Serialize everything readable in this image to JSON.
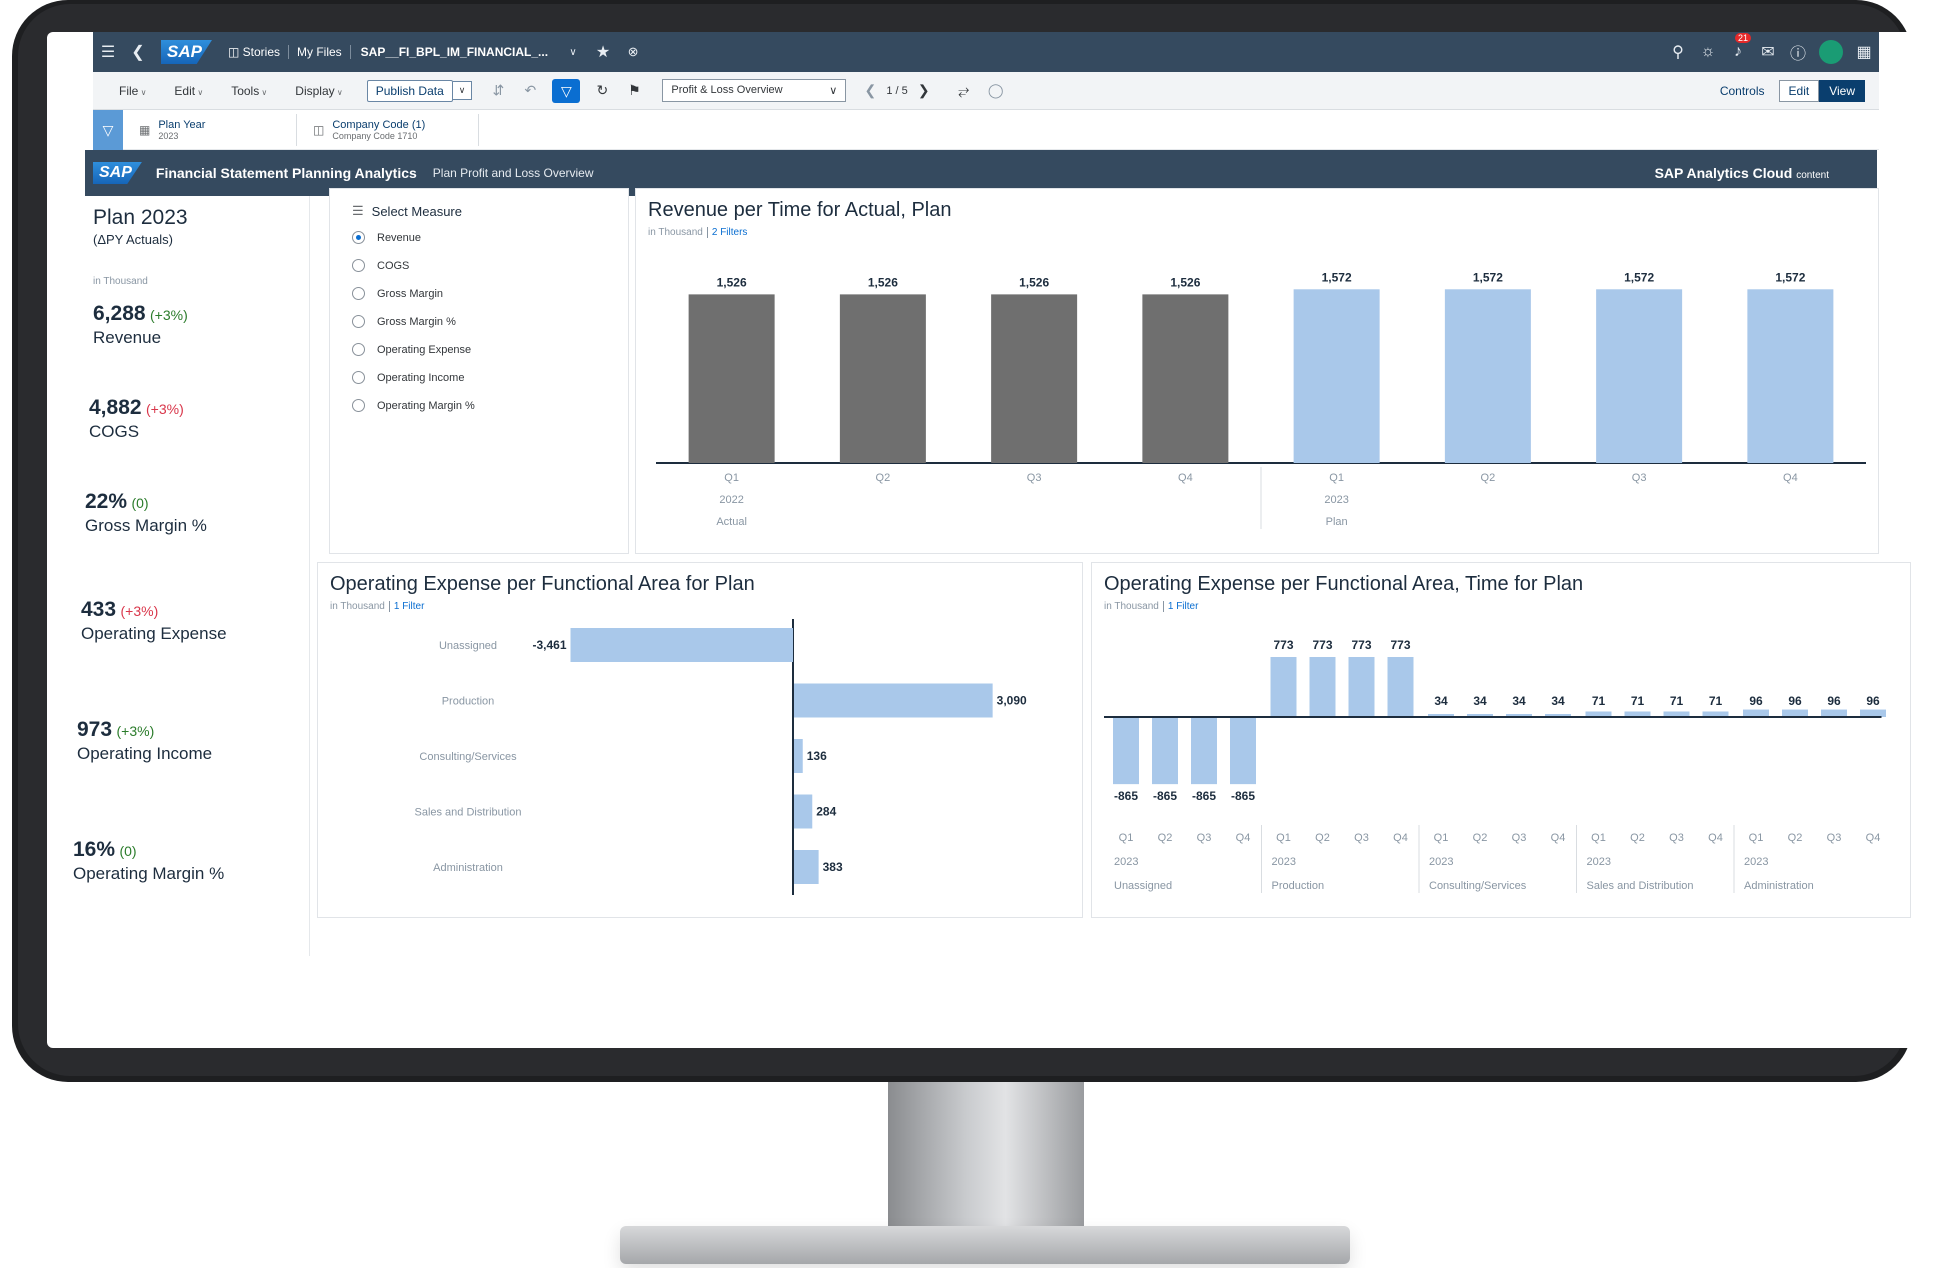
{
  "shell": {
    "stories": "Stories",
    "my_files": "My Files",
    "filename": "SAP__FI_BPL_IM_FINANCIAL_...",
    "notifications": "21"
  },
  "toolbar": {
    "menus": [
      "File",
      "Edit",
      "Tools",
      "Display"
    ],
    "publish": "Publish Data",
    "page_select": "Profit & Loss Overview",
    "pager": "1 / 5",
    "controls": "Controls",
    "edit": "Edit",
    "view": "View"
  },
  "filters": [
    {
      "label": "Plan Year",
      "value": "2023"
    },
    {
      "label": "Company Code (1)",
      "value": "Company Code 1710"
    }
  ],
  "header": {
    "app_title": "Financial Statement Planning Analytics",
    "subtitle": "Plan Profit and Loss Overview",
    "brand": "SAP Analytics Cloud",
    "brand_suffix": "content"
  },
  "kpis": {
    "title": "Plan 2023",
    "subtitle": "(ΔPY Actuals)",
    "unit": "in Thousand",
    "items": [
      {
        "value": "6,288",
        "delta": "(+3%)",
        "label": "Revenue",
        "tone": "pos"
      },
      {
        "value": "4,882",
        "delta": "(+3%)",
        "label": "COGS",
        "tone": "neg"
      },
      {
        "value": "22%",
        "delta": "(0)",
        "label": "Gross Margin %",
        "tone": "pos"
      },
      {
        "value": "433",
        "delta": "(+3%)",
        "label": "Operating Expense",
        "tone": "neg"
      },
      {
        "value": "973",
        "delta": "(+3%)",
        "label": "Operating Income",
        "tone": "pos"
      },
      {
        "value": "16%",
        "delta": "(0)",
        "label": "Operating Margin %",
        "tone": "pos"
      }
    ]
  },
  "measure_panel": {
    "title": "Select Measure",
    "options": [
      "Revenue",
      "COGS",
      "Gross Margin",
      "Gross Margin %",
      "Operating Expense",
      "Operating Income",
      "Operating Margin %"
    ],
    "selected": "Revenue"
  },
  "colors": {
    "actual": "#6f6f6f",
    "plan": "#a9c8ea",
    "shell": "#354a5f",
    "accent": "#0a6ed1"
  },
  "chart_data": [
    {
      "type": "bar",
      "title": "Revenue per Time for Actual, Plan",
      "unit": "in Thousand",
      "filter": "2 Filters",
      "categories": [
        "Q1",
        "Q2",
        "Q3",
        "Q4",
        "Q1",
        "Q2",
        "Q3",
        "Q4"
      ],
      "groups": [
        {
          "year": "2022",
          "version": "Actual",
          "count": 4
        },
        {
          "year": "2023",
          "version": "Plan",
          "count": 4
        }
      ],
      "values": [
        1526,
        1526,
        1526,
        1526,
        1572,
        1572,
        1572,
        1572
      ],
      "labels": [
        "1,526",
        "1,526",
        "1,526",
        "1,526",
        "1,572",
        "1,572",
        "1,572",
        "1,572"
      ]
    },
    {
      "type": "bar",
      "orientation": "horizontal",
      "title": "Operating Expense per Functional Area for Plan",
      "unit": "in Thousand",
      "filter": "1 Filter",
      "categories": [
        "Unassigned",
        "Production",
        "Consulting/Services",
        "Sales and Distribution",
        "Administration"
      ],
      "values": [
        -3461,
        3090,
        136,
        284,
        383
      ],
      "labels": [
        "-3,461",
        "3,090",
        "136",
        "284",
        "383"
      ]
    },
    {
      "type": "bar",
      "title": "Operating Expense per Functional Area, Time for Plan",
      "unit": "in Thousand",
      "filter": "1 Filter",
      "quarters": [
        "Q1",
        "Q2",
        "Q3",
        "Q4"
      ],
      "year": "2023",
      "groups": [
        {
          "name": "Unassigned",
          "values": [
            -865,
            -865,
            -865,
            -865
          ],
          "labels": [
            "-865",
            "-865",
            "-865",
            "-865"
          ]
        },
        {
          "name": "Production",
          "values": [
            773,
            773,
            773,
            773
          ],
          "labels": [
            "773",
            "773",
            "773",
            "773"
          ]
        },
        {
          "name": "Consulting/Services",
          "values": [
            34,
            34,
            34,
            34
          ],
          "labels": [
            "34",
            "34",
            "34",
            "34"
          ]
        },
        {
          "name": "Sales and Distribution",
          "values": [
            71,
            71,
            71,
            71
          ],
          "labels": [
            "71",
            "71",
            "71",
            "71"
          ]
        },
        {
          "name": "Administration",
          "values": [
            96,
            96,
            96,
            96
          ],
          "labels": [
            "96",
            "96",
            "96",
            "96"
          ]
        }
      ]
    }
  ]
}
